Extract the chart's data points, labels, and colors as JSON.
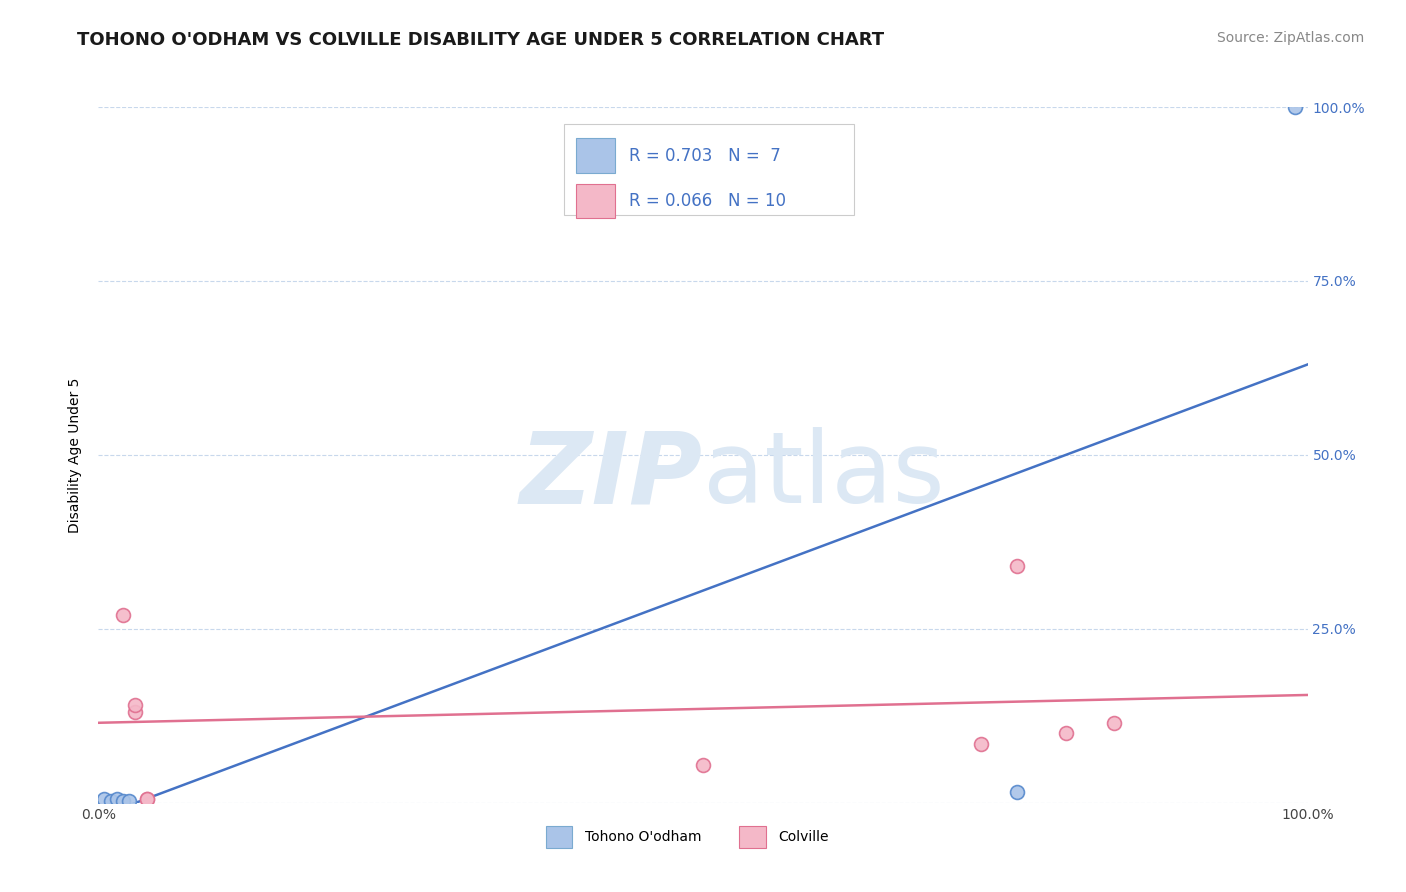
{
  "title": "TOHONO O'ODHAM VS COLVILLE DISABILITY AGE UNDER 5 CORRELATION CHART",
  "source": "Source: ZipAtlas.com",
  "ylabel": "Disability Age Under 5",
  "legend_r_color": "#4472c4",
  "legend_entries": [
    {
      "r": "0.703",
      "n": "7",
      "color": "#aac4e8",
      "edge": "#7aaad0"
    },
    {
      "r": "0.066",
      "n": "10",
      "color": "#f4b8c8",
      "edge": "#e07090"
    }
  ],
  "blue_scatter": {
    "x": [
      0.005,
      0.01,
      0.015,
      0.02,
      0.025,
      0.76,
      0.99
    ],
    "y": [
      0.005,
      0.003,
      0.005,
      0.003,
      0.003,
      0.015,
      1.0
    ],
    "color": "#aac4e8",
    "edge_color": "#5588cc",
    "size": 100
  },
  "pink_scatter": {
    "x": [
      0.02,
      0.03,
      0.03,
      0.04,
      0.04,
      0.5,
      0.73,
      0.76,
      0.8,
      0.84
    ],
    "y": [
      0.27,
      0.13,
      0.14,
      0.005,
      0.005,
      0.055,
      0.085,
      0.34,
      0.1,
      0.115
    ],
    "color": "#f4b8c8",
    "edge_color": "#e07090",
    "size": 100
  },
  "blue_line": {
    "x": [
      0.0,
      1.0
    ],
    "y": [
      -0.02,
      0.63
    ],
    "color": "#4472c4",
    "linewidth": 1.8
  },
  "pink_line": {
    "x": [
      0.0,
      1.0
    ],
    "y": [
      0.115,
      0.155
    ],
    "color": "#e07090",
    "linewidth": 1.8
  },
  "yticks": [
    0.0,
    0.25,
    0.5,
    0.75,
    1.0
  ],
  "ytick_labels_right": [
    "",
    "25.0%",
    "50.0%",
    "75.0%",
    "100.0%"
  ],
  "xticks": [
    0.0,
    0.25,
    0.5,
    0.75,
    1.0
  ],
  "xtick_labels": [
    "0.0%",
    "",
    "",
    "",
    "100.0%"
  ],
  "grid_color": "#c8d8ec",
  "background_color": "#ffffff",
  "right_tick_color": "#4472c4",
  "title_fontsize": 13,
  "label_fontsize": 10,
  "source_fontsize": 10,
  "watermark_zip": "ZIP",
  "watermark_atlas": "atlas",
  "watermark_color": "#dce8f4",
  "watermark_fontsize": 72
}
